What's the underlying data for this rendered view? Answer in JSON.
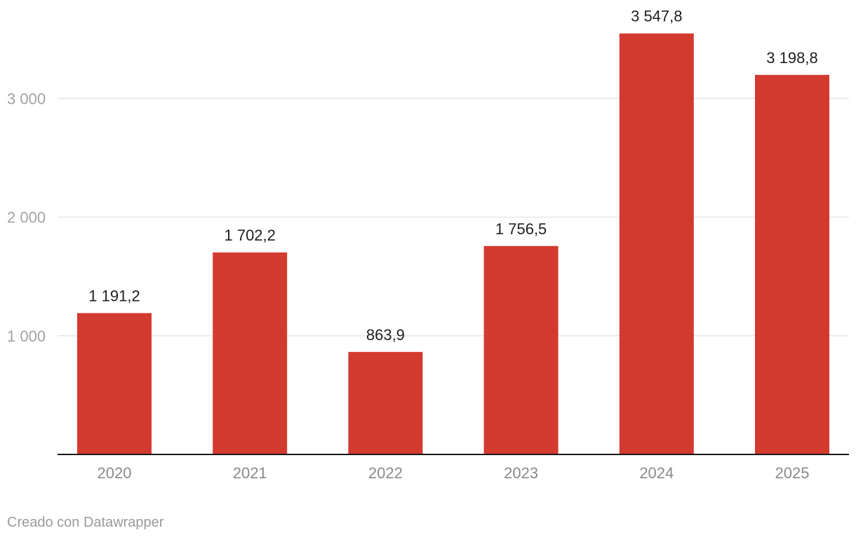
{
  "chart_data": {
    "type": "bar",
    "categories": [
      "2020",
      "2021",
      "2022",
      "2023",
      "2024",
      "2025"
    ],
    "values": [
      1191.2,
      1702.2,
      863.9,
      1756.5,
      3547.8,
      3198.8
    ],
    "value_labels": [
      "1 191,2",
      "1 702,2",
      "863,9",
      "1 756,5",
      "3 547,8",
      "3 198,8"
    ],
    "yticks": [
      1000,
      2000,
      3000
    ],
    "ytick_labels": [
      "1 000",
      "2 000",
      "3 000"
    ],
    "ylim": [
      0,
      3700
    ],
    "bar_color": "#d33a2f",
    "grid": true
  },
  "credit": "Creado con Datawrapper"
}
